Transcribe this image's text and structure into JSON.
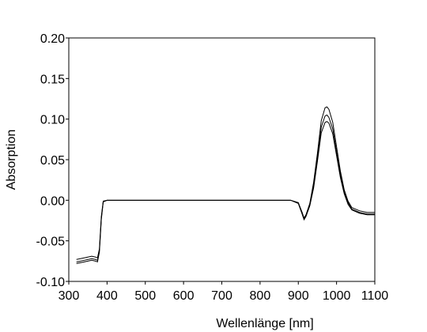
{
  "chart_data": {
    "type": "line",
    "x_label": "Wellenlänge [nm]",
    "y_label": "Absorption",
    "x": [
      320,
      340,
      360,
      370,
      375,
      380,
      385,
      390,
      400,
      500,
      600,
      700,
      800,
      880,
      900,
      910,
      915,
      920,
      930,
      940,
      950,
      960,
      970,
      975,
      980,
      990,
      1000,
      1010,
      1020,
      1030,
      1040,
      1060,
      1080,
      1100
    ],
    "series": [
      {
        "color": "#000000",
        "values": [
          -0.073,
          -0.071,
          -0.069,
          -0.07,
          -0.071,
          -0.06,
          -0.02,
          -0.001,
          0,
          0,
          0,
          0,
          0,
          0,
          -0.003,
          -0.015,
          -0.022,
          -0.018,
          -0.004,
          0.022,
          0.058,
          0.098,
          0.114,
          0.115,
          0.112,
          0.096,
          0.066,
          0.036,
          0.013,
          -0.001,
          -0.009,
          -0.013,
          -0.015,
          -0.015
        ]
      },
      {
        "color": "#000000",
        "values": [
          -0.076,
          -0.074,
          -0.072,
          -0.073,
          -0.074,
          -0.062,
          -0.022,
          -0.002,
          0,
          0,
          0,
          0,
          0,
          0,
          -0.003,
          -0.016,
          -0.023,
          -0.019,
          -0.006,
          0.018,
          0.052,
          0.09,
          0.104,
          0.105,
          0.102,
          0.088,
          0.06,
          0.032,
          0.01,
          -0.003,
          -0.011,
          -0.015,
          -0.017,
          -0.017
        ]
      },
      {
        "color": "#000000",
        "values": [
          -0.078,
          -0.076,
          -0.074,
          -0.075,
          -0.076,
          -0.064,
          -0.024,
          -0.002,
          0,
          0,
          0,
          0,
          0,
          0,
          -0.004,
          -0.017,
          -0.024,
          -0.02,
          -0.007,
          0.015,
          0.048,
          0.083,
          0.096,
          0.097,
          0.095,
          0.082,
          0.055,
          0.028,
          0.008,
          -0.005,
          -0.012,
          -0.016,
          -0.018,
          -0.018
        ]
      }
    ],
    "xlim": [
      300,
      1100
    ],
    "xticks": [
      300,
      400,
      500,
      600,
      700,
      800,
      900,
      1000,
      1100
    ],
    "ylim": [
      -0.1,
      0.2
    ],
    "yticks": [
      {
        "value": -0.1,
        "label": "-0.10"
      },
      {
        "value": -0.05,
        "label": "-0.05"
      },
      {
        "value": 0,
        "label": "0.00"
      },
      {
        "value": 0.05,
        "label": "0.05"
      },
      {
        "value": 0.1,
        "label": "0.10"
      },
      {
        "value": 0.15,
        "label": "0.15"
      },
      {
        "value": 0.2,
        "label": "0.20"
      }
    ],
    "grid": false
  }
}
